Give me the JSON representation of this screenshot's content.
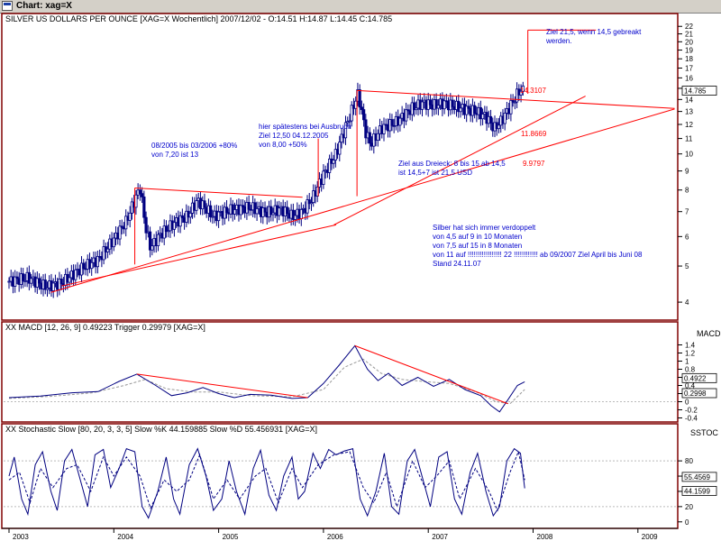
{
  "window": {
    "title": "Chart: xag=X"
  },
  "colors": {
    "frame": "#800000",
    "candle": "#000080",
    "annotation": "#ff0000",
    "note_text": "#0000cc",
    "signal": "#999999",
    "ref_line": "#bbbbbb",
    "badge_bg": "#ffffff"
  },
  "chart_data": [
    {
      "type": "candlestick",
      "title": "SILVER US DOLLARS PER OUNCE [XAG=X  Wochentlich] 2007/12/02 - O:14.51 H:14.87 L:14.45 C:14.785",
      "y_ticks": [
        "22",
        "21",
        "20",
        "19",
        "18",
        "17",
        "16",
        "15",
        "14",
        "13",
        "12",
        "11",
        "10",
        "9",
        "8",
        "7",
        "6",
        "5",
        "4"
      ],
      "ylim": [
        3.6,
        22.4
      ],
      "y_scale": "log",
      "x_ticks": [
        "2003",
        "2004",
        "2005",
        "2006",
        "2007",
        "2008",
        "2009"
      ],
      "last_value_label": "14.785",
      "price_path": [
        {
          "t": 2003.0,
          "v": 4.55
        },
        {
          "t": 2003.18,
          "v": 4.65
        },
        {
          "t": 2003.35,
          "v": 4.4
        },
        {
          "t": 2003.5,
          "v": 4.5
        },
        {
          "t": 2003.7,
          "v": 4.95
        },
        {
          "t": 2003.85,
          "v": 5.2
        },
        {
          "t": 2004.0,
          "v": 5.9
        },
        {
          "t": 2004.12,
          "v": 6.6
        },
        {
          "t": 2004.25,
          "v": 8.1
        },
        {
          "t": 2004.3,
          "v": 6.4
        },
        {
          "t": 2004.35,
          "v": 5.6
        },
        {
          "t": 2004.45,
          "v": 6.1
        },
        {
          "t": 2004.6,
          "v": 6.6
        },
        {
          "t": 2004.7,
          "v": 6.8
        },
        {
          "t": 2004.8,
          "v": 7.5
        },
        {
          "t": 2004.95,
          "v": 6.8
        },
        {
          "t": 2005.1,
          "v": 7.05
        },
        {
          "t": 2005.3,
          "v": 7.2
        },
        {
          "t": 2005.45,
          "v": 6.95
        },
        {
          "t": 2005.6,
          "v": 7.1
        },
        {
          "t": 2005.7,
          "v": 6.8
        },
        {
          "t": 2005.8,
          "v": 7.0
        },
        {
          "t": 2005.9,
          "v": 7.65
        },
        {
          "t": 2006.0,
          "v": 8.8
        },
        {
          "t": 2006.12,
          "v": 10.0
        },
        {
          "t": 2006.25,
          "v": 12.6
        },
        {
          "t": 2006.33,
          "v": 14.5
        },
        {
          "t": 2006.4,
          "v": 11.5
        },
        {
          "t": 2006.45,
          "v": 10.6
        },
        {
          "t": 2006.55,
          "v": 11.7
        },
        {
          "t": 2006.7,
          "v": 12.2
        },
        {
          "t": 2006.85,
          "v": 13.3
        },
        {
          "t": 2006.95,
          "v": 13.7
        },
        {
          "t": 2007.05,
          "v": 13.5
        },
        {
          "t": 2007.15,
          "v": 13.7
        },
        {
          "t": 2007.3,
          "v": 13.3
        },
        {
          "t": 2007.45,
          "v": 13.0
        },
        {
          "t": 2007.55,
          "v": 12.6
        },
        {
          "t": 2007.63,
          "v": 11.7
        },
        {
          "t": 2007.7,
          "v": 12.3
        },
        {
          "t": 2007.8,
          "v": 13.7
        },
        {
          "t": 2007.87,
          "v": 14.8
        },
        {
          "t": 2007.92,
          "v": 14.785
        }
      ],
      "annotations": {
        "note_2005": [
          "08/2005 bis 03/2006 +80%",
          "von 7,20 ist 13"
        ],
        "note_breakout": [
          "hier spätestens bei Ausbruch",
          "Ziel 12,50 04.12.2005",
          "von 8,00 +50%"
        ],
        "note_target": [
          "Ziel 21,5, wenn 14,5 gebreakt",
          "werden."
        ],
        "note_triangle": [
          "Ziel aus Dreieck: 8 bis 15 ab 14,5",
          "ist 14,5+7 ist 21,5 USD"
        ],
        "note_doubling": [
          "Silber hat sich immer verdoppelt",
          "von 4,5 auf 9 in 10 Monaten",
          "von 7,5 auf 15 in 8 Monaten",
          "von 11 auf !!!!!!!!!!!!!!!!! 22 !!!!!!!!!!!! ab 09/2007 Ziel April bis Juni 08",
          "Stand 24.11.07"
        ],
        "level_labels": [
          "14.3107",
          "11.8669",
          "9.9797"
        ]
      }
    },
    {
      "type": "line",
      "title": "XX MACD [12, 26, 9] 0.49223 Trigger 0.29979 [XAG=X]",
      "panel_label": "MACD",
      "y_ticks": [
        "1.4",
        "1.2",
        "1",
        "0.8",
        "0.6",
        "0.4",
        "0.2",
        "0",
        "-0.2",
        "-0.4"
      ],
      "ylim": [
        -0.5,
        1.5
      ],
      "value_labels": [
        "0.4922",
        "0.2998"
      ],
      "series": [
        {
          "name": "MACD",
          "values": [
            [
              2003.0,
              0.1
            ],
            [
              2003.3,
              0.14
            ],
            [
              2003.6,
              0.22
            ],
            [
              2003.85,
              0.25
            ],
            [
              2004.05,
              0.5
            ],
            [
              2004.22,
              0.68
            ],
            [
              2004.4,
              0.4
            ],
            [
              2004.55,
              0.15
            ],
            [
              2004.7,
              0.22
            ],
            [
              2004.85,
              0.35
            ],
            [
              2005.0,
              0.2
            ],
            [
              2005.15,
              0.1
            ],
            [
              2005.3,
              0.18
            ],
            [
              2005.5,
              0.16
            ],
            [
              2005.7,
              0.08
            ],
            [
              2005.85,
              0.1
            ],
            [
              2006.0,
              0.45
            ],
            [
              2006.15,
              0.9
            ],
            [
              2006.3,
              1.38
            ],
            [
              2006.42,
              0.8
            ],
            [
              2006.52,
              0.52
            ],
            [
              2006.62,
              0.7
            ],
            [
              2006.75,
              0.4
            ],
            [
              2006.9,
              0.6
            ],
            [
              2007.05,
              0.38
            ],
            [
              2007.2,
              0.55
            ],
            [
              2007.35,
              0.3
            ],
            [
              2007.5,
              0.15
            ],
            [
              2007.6,
              -0.1
            ],
            [
              2007.68,
              -0.25
            ],
            [
              2007.76,
              0.05
            ],
            [
              2007.85,
              0.4
            ],
            [
              2007.92,
              0.49
            ]
          ]
        },
        {
          "name": "Trigger",
          "values": [
            [
              2003.0,
              0.08
            ],
            [
              2003.4,
              0.13
            ],
            [
              2003.8,
              0.22
            ],
            [
              2004.1,
              0.4
            ],
            [
              2004.3,
              0.55
            ],
            [
              2004.5,
              0.32
            ],
            [
              2004.75,
              0.24
            ],
            [
              2005.0,
              0.24
            ],
            [
              2005.3,
              0.15
            ],
            [
              2005.7,
              0.12
            ],
            [
              2006.0,
              0.3
            ],
            [
              2006.2,
              0.85
            ],
            [
              2006.38,
              1.05
            ],
            [
              2006.55,
              0.7
            ],
            [
              2006.75,
              0.55
            ],
            [
              2006.95,
              0.5
            ],
            [
              2007.2,
              0.45
            ],
            [
              2007.45,
              0.25
            ],
            [
              2007.65,
              0.0
            ],
            [
              2007.78,
              -0.05
            ],
            [
              2007.92,
              0.3
            ]
          ]
        }
      ],
      "trend_lines": [
        [
          [
            2004.22,
            0.68
          ],
          [
            2005.85,
            0.1
          ]
        ],
        [
          [
            2006.3,
            1.38
          ],
          [
            2007.76,
            -0.05
          ]
        ]
      ]
    },
    {
      "type": "line",
      "title": "XX Stochastic Slow [80, 20, 3, 3, 5] Slow %K 44.159885 Slow %D 55.456931 [XAG=X]",
      "panel_label": "SSTOC",
      "y_ticks": [
        "80",
        "60",
        "40",
        "20",
        "0"
      ],
      "ylim": [
        -5,
        105
      ],
      "reference_lines": [
        80,
        20
      ],
      "value_labels": [
        "55.4569",
        "44.1599"
      ],
      "series": [
        {
          "name": "Slow %K",
          "values": [
            [
              2003.0,
              60
            ],
            [
              2003.05,
              85
            ],
            [
              2003.12,
              30
            ],
            [
              2003.18,
              10
            ],
            [
              2003.25,
              75
            ],
            [
              2003.32,
              92
            ],
            [
              2003.4,
              40
            ],
            [
              2003.46,
              15
            ],
            [
              2003.53,
              80
            ],
            [
              2003.6,
              95
            ],
            [
              2003.68,
              55
            ],
            [
              2003.75,
              20
            ],
            [
              2003.82,
              88
            ],
            [
              2003.9,
              95
            ],
            [
              2003.97,
              45
            ],
            [
              2004.05,
              70
            ],
            [
              2004.12,
              96
            ],
            [
              2004.2,
              92
            ],
            [
              2004.27,
              20
            ],
            [
              2004.33,
              5
            ],
            [
              2004.42,
              40
            ],
            [
              2004.5,
              85
            ],
            [
              2004.57,
              30
            ],
            [
              2004.63,
              10
            ],
            [
              2004.72,
              75
            ],
            [
              2004.8,
              96
            ],
            [
              2004.88,
              60
            ],
            [
              2004.95,
              15
            ],
            [
              2005.03,
              30
            ],
            [
              2005.1,
              80
            ],
            [
              2005.17,
              40
            ],
            [
              2005.25,
              10
            ],
            [
              2005.33,
              70
            ],
            [
              2005.4,
              94
            ],
            [
              2005.48,
              35
            ],
            [
              2005.55,
              15
            ],
            [
              2005.62,
              60
            ],
            [
              2005.7,
              85
            ],
            [
              2005.76,
              30
            ],
            [
              2005.82,
              40
            ],
            [
              2005.9,
              90
            ],
            [
              2005.97,
              70
            ],
            [
              2006.05,
              95
            ],
            [
              2006.12,
              88
            ],
            [
              2006.2,
              93
            ],
            [
              2006.28,
              96
            ],
            [
              2006.35,
              30
            ],
            [
              2006.42,
              8
            ],
            [
              2006.5,
              40
            ],
            [
              2006.58,
              90
            ],
            [
              2006.65,
              20
            ],
            [
              2006.72,
              10
            ],
            [
              2006.8,
              80
            ],
            [
              2006.87,
              95
            ],
            [
              2006.95,
              55
            ],
            [
              2007.02,
              20
            ],
            [
              2007.1,
              85
            ],
            [
              2007.18,
              92
            ],
            [
              2007.25,
              30
            ],
            [
              2007.32,
              10
            ],
            [
              2007.4,
              65
            ],
            [
              2007.47,
              90
            ],
            [
              2007.55,
              40
            ],
            [
              2007.62,
              8
            ],
            [
              2007.68,
              20
            ],
            [
              2007.75,
              80
            ],
            [
              2007.82,
              96
            ],
            [
              2007.88,
              90
            ],
            [
              2007.92,
              44
            ]
          ]
        },
        {
          "name": "Slow %D",
          "values": [
            [
              2003.0,
              55
            ],
            [
              2003.1,
              65
            ],
            [
              2003.2,
              25
            ],
            [
              2003.3,
              70
            ],
            [
              2003.42,
              45
            ],
            [
              2003.55,
              70
            ],
            [
              2003.65,
              75
            ],
            [
              2003.78,
              40
            ],
            [
              2003.9,
              85
            ],
            [
              2004.0,
              60
            ],
            [
              2004.12,
              85
            ],
            [
              2004.25,
              60
            ],
            [
              2004.35,
              18
            ],
            [
              2004.48,
              55
            ],
            [
              2004.6,
              40
            ],
            [
              2004.72,
              55
            ],
            [
              2004.82,
              88
            ],
            [
              2004.95,
              30
            ],
            [
              2005.08,
              55
            ],
            [
              2005.2,
              30
            ],
            [
              2005.35,
              60
            ],
            [
              2005.45,
              70
            ],
            [
              2005.57,
              25
            ],
            [
              2005.7,
              70
            ],
            [
              2005.8,
              45
            ],
            [
              2005.95,
              75
            ],
            [
              2006.1,
              88
            ],
            [
              2006.25,
              92
            ],
            [
              2006.38,
              45
            ],
            [
              2006.48,
              25
            ],
            [
              2006.6,
              65
            ],
            [
              2006.7,
              20
            ],
            [
              2006.85,
              80
            ],
            [
              2006.97,
              45
            ],
            [
              2007.08,
              60
            ],
            [
              2007.2,
              80
            ],
            [
              2007.3,
              30
            ],
            [
              2007.45,
              70
            ],
            [
              2007.58,
              40
            ],
            [
              2007.66,
              15
            ],
            [
              2007.78,
              65
            ],
            [
              2007.86,
              92
            ],
            [
              2007.92,
              55
            ]
          ]
        }
      ]
    }
  ]
}
